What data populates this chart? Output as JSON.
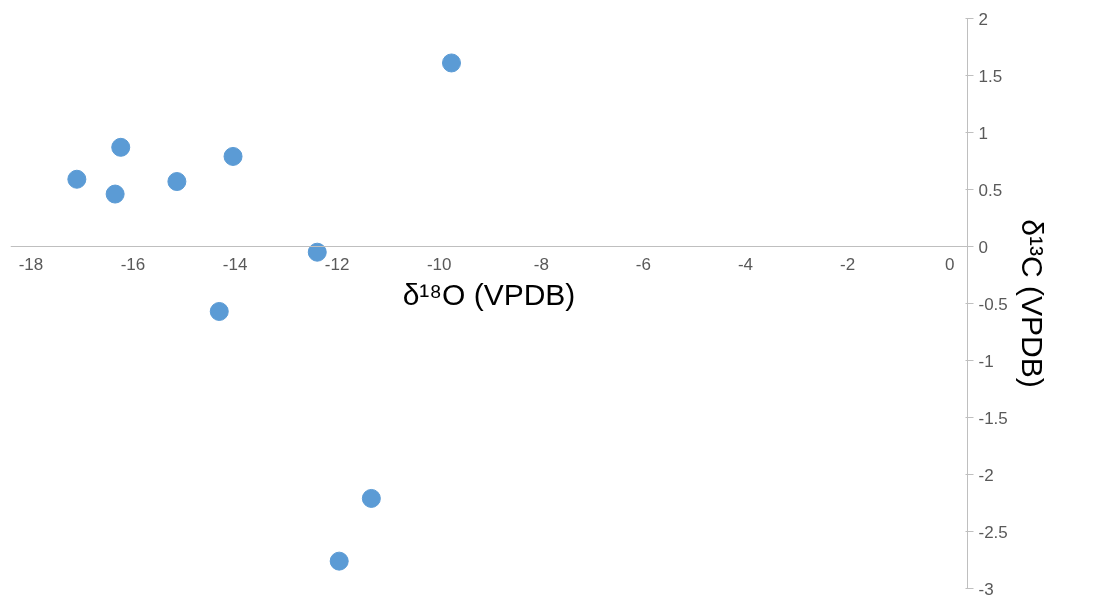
{
  "chart_data": {
    "type": "scatter",
    "xlabel": "δ¹⁸O (VPDB)",
    "ylabel": "δ¹³C (VPDB)",
    "x": [
      -17.1,
      -16.24,
      -16.35,
      -15.14,
      -14.04,
      -9.76,
      -12.39,
      -14.31,
      -11.33,
      -11.96
    ],
    "series": [
      {
        "color": "#5b9bd5",
        "values": [
          0.59,
          0.87,
          0.46,
          0.57,
          0.79,
          1.61,
          -0.05,
          -0.57,
          -2.21,
          -2.76
        ]
      }
    ],
    "xlim": [
      -18.4,
      0.35
    ],
    "xticks": [
      -18,
      -16,
      -14,
      -12,
      -10,
      -8,
      -6,
      -4,
      -2,
      0
    ],
    "ylim": [
      -3,
      2
    ],
    "yticks": [
      -3,
      -2.5,
      -2,
      -1.5,
      -1,
      -0.5,
      0,
      0.5,
      1,
      1.5,
      2
    ],
    "grid": false,
    "marker": "circle"
  }
}
